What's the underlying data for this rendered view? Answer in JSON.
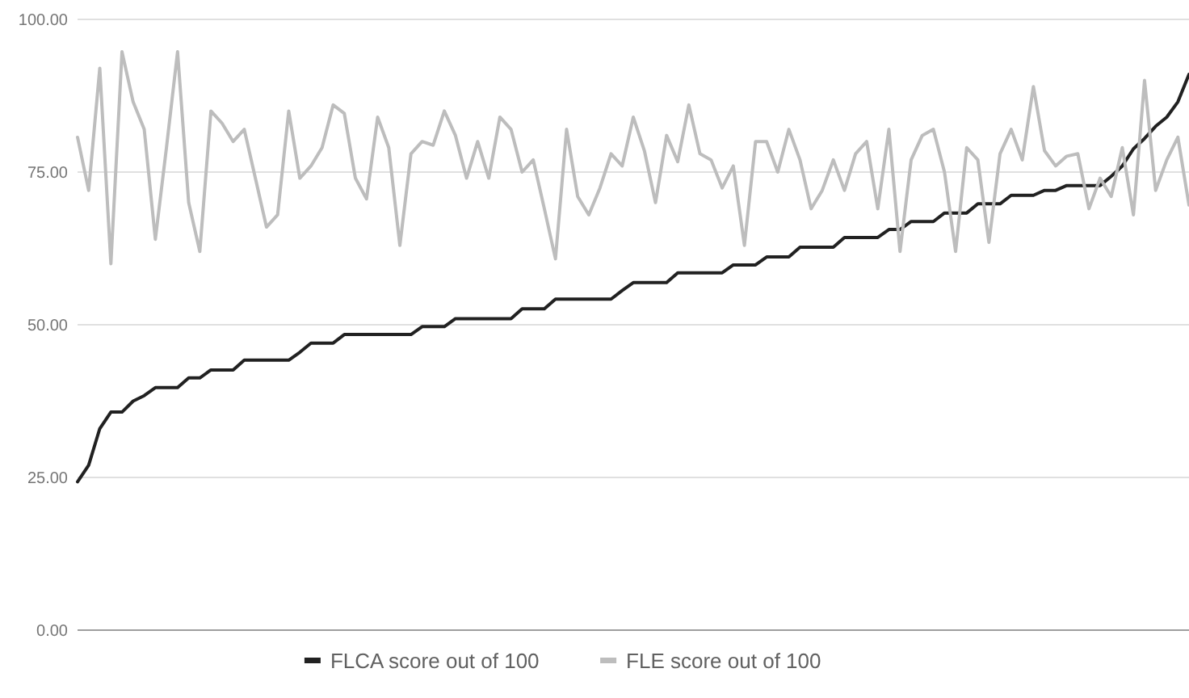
{
  "chart_data": {
    "type": "line",
    "categories": [
      null,
      null,
      null,
      null,
      null,
      null,
      null,
      null,
      null,
      null,
      null,
      null,
      null,
      null,
      null,
      null,
      null,
      null,
      null,
      null,
      null,
      null,
      null,
      null,
      null,
      null,
      null,
      null,
      null,
      null,
      null,
      null,
      null,
      null,
      null,
      null,
      null,
      null,
      null,
      null,
      null,
      null,
      null,
      null,
      null,
      null,
      null,
      null,
      null,
      null,
      null,
      null,
      null,
      null,
      null,
      null,
      null,
      null,
      null,
      null,
      null,
      null,
      null,
      null,
      null,
      null,
      null,
      null,
      null,
      null,
      null,
      null,
      null,
      null,
      null,
      null,
      null,
      null,
      null,
      null,
      null,
      null,
      null,
      null,
      null,
      null,
      null,
      null,
      null,
      null,
      null,
      null,
      null,
      null,
      null,
      null,
      null,
      null,
      null,
      null,
      null
    ],
    "series": [
      {
        "name": "FLCA score out of 100",
        "color": "#212121",
        "values": [
          24.3,
          27,
          33,
          35.7,
          35.7,
          37.5,
          38.4,
          39.7,
          39.7,
          39.7,
          41.3,
          41.3,
          42.6,
          42.6,
          42.6,
          44.2,
          44.2,
          44.2,
          44.2,
          44.2,
          45.5,
          47,
          47,
          47,
          48.4,
          48.4,
          48.4,
          48.4,
          48.4,
          48.4,
          48.4,
          49.7,
          49.7,
          49.7,
          51,
          51,
          51,
          51,
          51,
          51,
          52.6,
          52.6,
          52.6,
          54.2,
          54.2,
          54.2,
          54.2,
          54.2,
          54.2,
          55.6,
          56.9,
          56.9,
          56.9,
          56.9,
          58.5,
          58.5,
          58.5,
          58.5,
          58.5,
          59.8,
          59.8,
          59.8,
          61.1,
          61.1,
          61.1,
          62.7,
          62.7,
          62.7,
          62.7,
          64.3,
          64.3,
          64.3,
          64.3,
          65.6,
          65.6,
          66.9,
          66.9,
          66.9,
          68.3,
          68.3,
          68.3,
          69.8,
          69.8,
          69.8,
          71.2,
          71.2,
          71.2,
          72,
          72,
          72.8,
          72.8,
          72.8,
          72.8,
          74.3,
          76,
          78.8,
          80.5,
          82.5,
          84,
          86.5,
          91
        ]
      },
      {
        "name": "FLE score out of 100",
        "color": "#bdbdbd",
        "values": [
          80.7,
          72,
          92,
          60,
          94.7,
          86.5,
          82,
          64,
          79,
          94.7,
          70,
          62,
          85,
          83,
          80,
          82,
          74,
          66,
          68,
          85,
          74,
          76,
          79,
          86,
          84.6,
          74,
          70.6,
          84,
          79,
          63,
          78,
          80,
          79.4,
          85,
          81,
          74,
          80,
          74,
          84,
          82,
          75,
          77,
          69,
          60.8,
          82,
          71,
          68,
          72.4,
          78,
          76,
          84,
          78.5,
          70,
          81,
          76.7,
          86,
          78,
          77,
          72.4,
          76,
          63,
          80,
          80,
          75,
          82,
          77,
          69,
          72,
          77,
          72,
          78,
          80,
          69,
          82,
          62,
          77,
          81,
          82,
          75,
          62,
          79,
          77,
          63.5,
          78,
          82,
          77,
          89,
          78.5,
          76,
          77.6,
          78,
          69,
          74,
          71,
          79,
          68,
          90,
          72,
          77,
          80.7,
          69.6
        ]
      }
    ],
    "ylim": [
      0,
      100
    ],
    "yticks": [
      {
        "value": 0,
        "label": "0.00"
      },
      {
        "value": 25,
        "label": "25.00"
      },
      {
        "value": 50,
        "label": "50.00"
      },
      {
        "value": 75,
        "label": "75.00"
      },
      {
        "value": 100,
        "label": "100.00"
      }
    ],
    "grid": "y",
    "legend": "bottom",
    "tick_labels": "y"
  }
}
